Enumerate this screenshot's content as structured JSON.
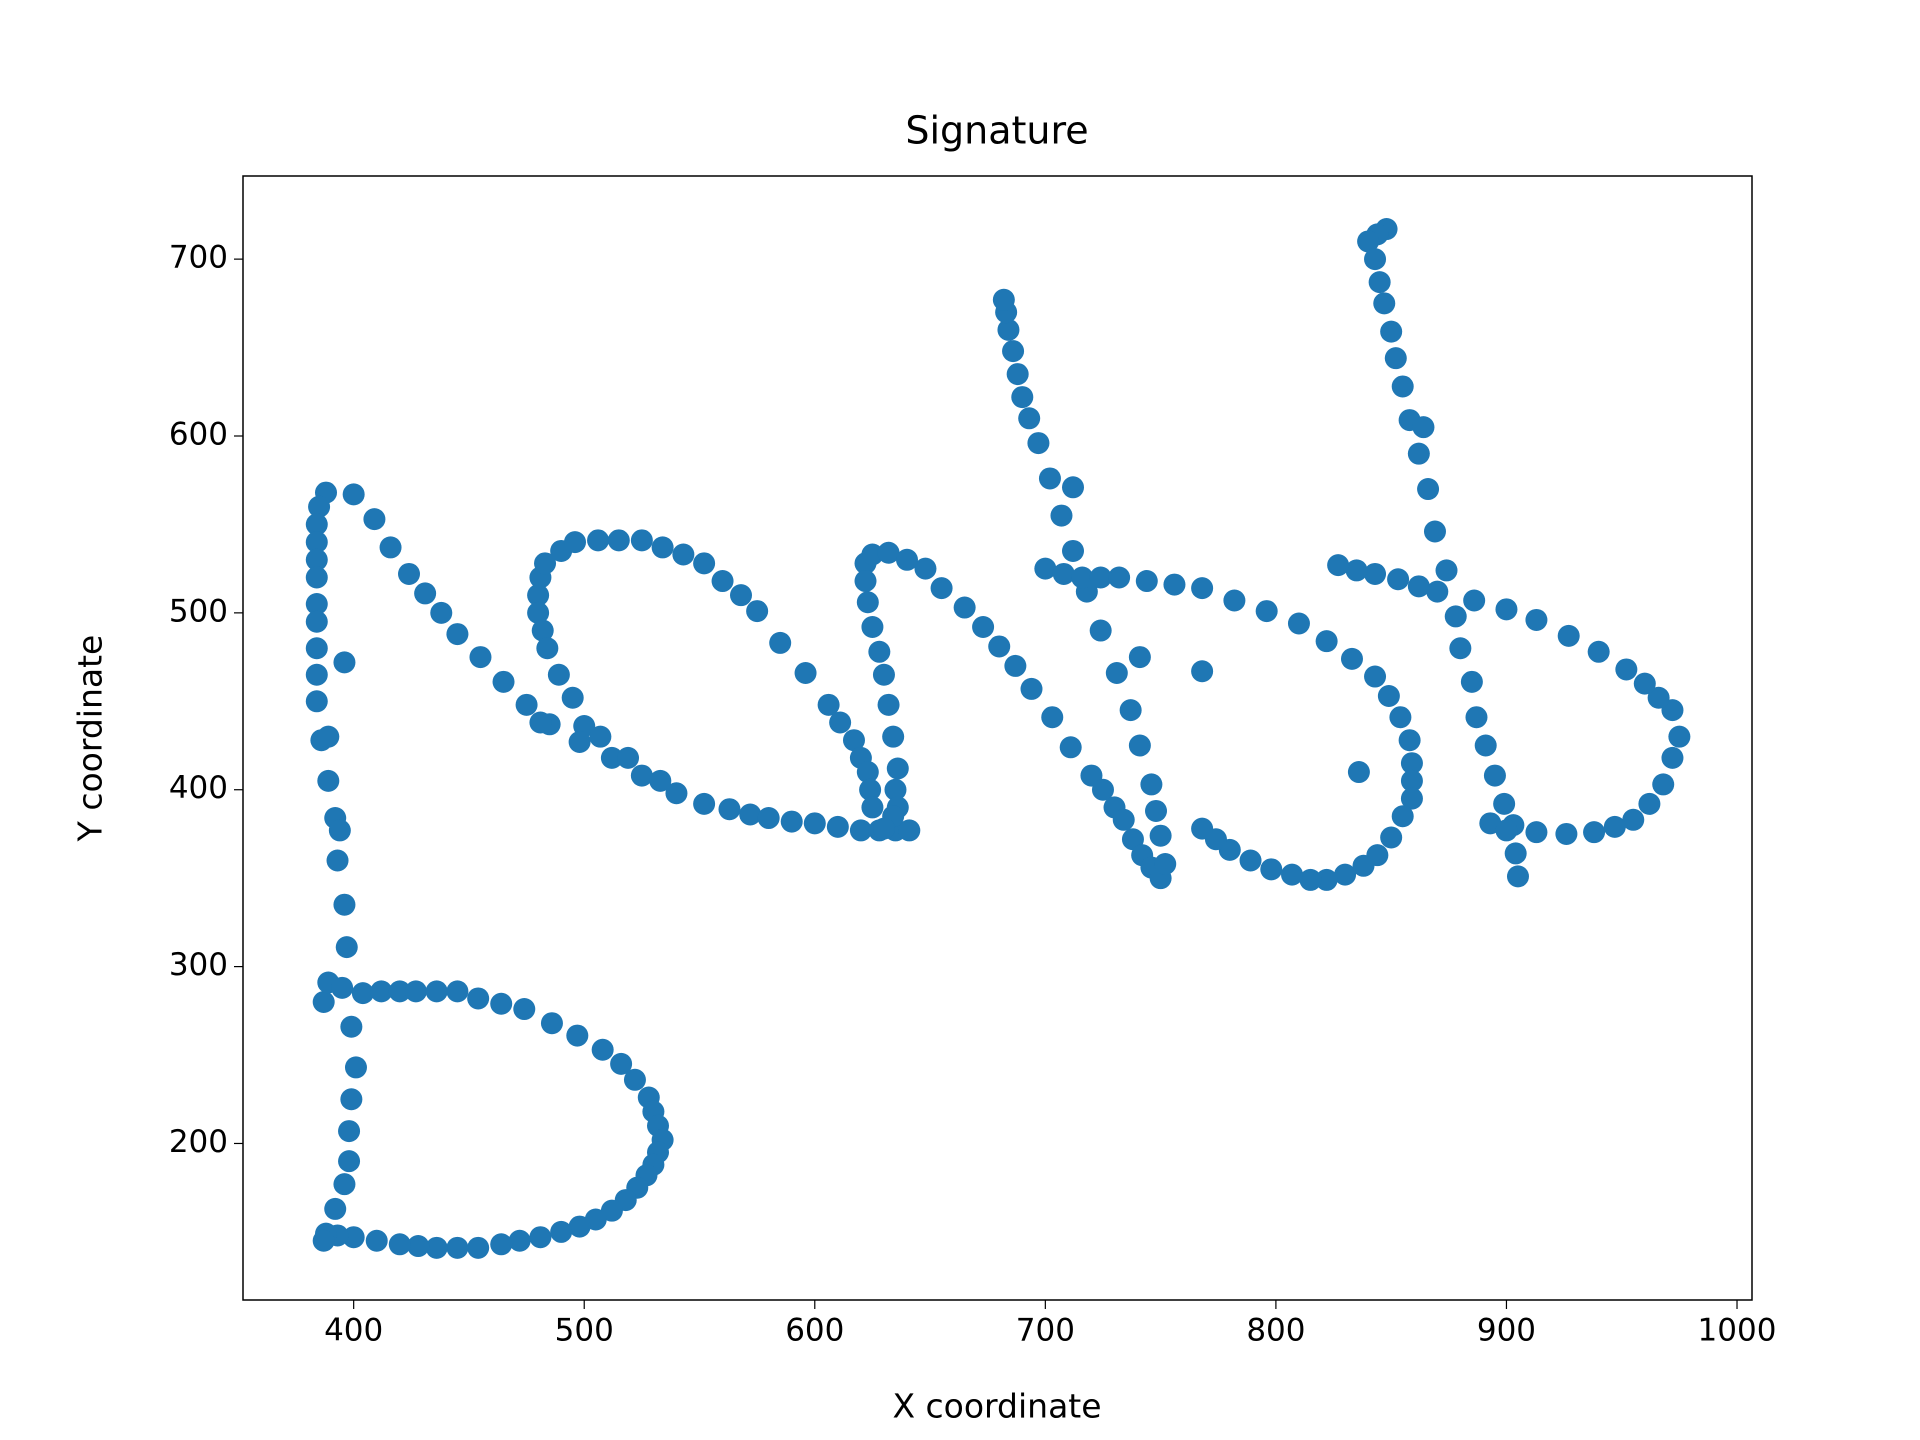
{
  "chart_data": {
    "type": "scatter",
    "title": "Signature",
    "x_label": "X coordinate",
    "y_label": "Y coordinate",
    "color": "#1f77b4",
    "x": [
      388,
      385,
      384,
      384,
      384,
      384,
      384,
      384,
      384,
      384,
      384,
      386,
      389,
      389,
      392,
      394,
      393,
      396,
      397,
      396,
      400,
      409,
      416,
      424,
      431,
      438,
      445,
      455,
      465,
      475,
      485,
      387,
      389,
      395,
      404,
      412,
      420,
      427,
      436,
      445,
      454,
      464,
      474,
      486,
      497,
      508,
      516,
      522,
      528,
      530,
      532,
      534,
      532,
      530,
      527,
      523,
      518,
      512,
      505,
      498,
      490,
      481,
      472,
      464,
      454,
      445,
      436,
      428,
      420,
      410,
      400,
      393,
      388,
      387,
      399,
      401,
      399,
      398,
      398,
      396,
      392,
      480,
      481,
      483,
      490,
      496,
      506,
      515,
      525,
      534,
      543,
      552,
      560,
      568,
      575,
      585,
      596,
      606,
      611,
      617,
      620,
      623,
      624,
      625,
      480,
      482,
      484,
      489,
      495,
      500,
      498,
      507,
      512,
      519,
      525,
      533,
      540,
      552,
      563,
      572,
      580,
      590,
      600,
      610,
      620,
      628,
      635,
      641,
      481,
      622,
      622,
      623,
      625,
      628,
      630,
      632,
      634,
      636,
      635,
      636,
      634,
      630,
      625,
      632,
      640,
      648,
      655,
      665,
      673,
      680,
      687,
      694,
      703,
      711,
      720,
      725,
      730,
      734,
      738,
      742,
      746,
      750,
      752,
      750,
      748,
      746,
      741,
      737,
      731,
      724,
      718,
      712,
      707,
      712,
      702,
      697,
      693,
      690,
      688,
      686,
      684,
      683,
      682,
      700,
      708,
      716,
      724,
      732,
      744,
      756,
      768,
      782,
      796,
      810,
      822,
      833,
      843,
      849,
      854,
      858,
      859,
      859,
      859,
      855,
      850,
      844,
      838,
      830,
      822,
      815,
      807,
      798,
      789,
      780,
      774,
      768,
      768,
      741,
      836,
      848,
      844,
      840,
      843,
      845,
      847,
      850,
      852,
      855,
      858,
      864,
      862,
      866,
      869,
      874,
      870,
      878,
      880,
      885,
      887,
      891,
      895,
      899,
      903,
      904,
      905,
      893,
      900,
      913,
      926,
      938,
      947,
      955,
      962,
      968,
      972,
      975,
      972,
      966,
      960,
      952,
      940,
      927,
      913,
      900,
      886,
      862,
      853,
      843,
      835,
      827
    ],
    "y": [
      568,
      560,
      550,
      540,
      530,
      520,
      505,
      495,
      480,
      465,
      450,
      428,
      430,
      405,
      384,
      377,
      360,
      335,
      311,
      472,
      567,
      553,
      537,
      522,
      511,
      500,
      488,
      475,
      461,
      448,
      437,
      280,
      291,
      288,
      285,
      286,
      286,
      286,
      286,
      286,
      282,
      279,
      276,
      268,
      261,
      253,
      245,
      236,
      226,
      218,
      210,
      202,
      195,
      188,
      182,
      175,
      168,
      162,
      157,
      153,
      150,
      147,
      145,
      143,
      141,
      141,
      141,
      142,
      143,
      145,
      147,
      148,
      149,
      145,
      266,
      243,
      225,
      207,
      190,
      177,
      163,
      510,
      520,
      528,
      535,
      540,
      541,
      541,
      541,
      537,
      533,
      528,
      518,
      510,
      501,
      483,
      466,
      448,
      438,
      428,
      418,
      410,
      400,
      390,
      500,
      490,
      480,
      465,
      452,
      436,
      427,
      430,
      418,
      418,
      408,
      405,
      398,
      392,
      389,
      386,
      384,
      382,
      381,
      379,
      377,
      377,
      377,
      377,
      438,
      528,
      518,
      506,
      492,
      478,
      465,
      448,
      430,
      412,
      400,
      390,
      385,
      378,
      533,
      534,
      530,
      525,
      514,
      503,
      492,
      481,
      470,
      457,
      441,
      424,
      408,
      400,
      390,
      383,
      372,
      363,
      356,
      350,
      358,
      374,
      388,
      403,
      425,
      445,
      466,
      490,
      512,
      535,
      555,
      571,
      576,
      596,
      610,
      622,
      635,
      648,
      660,
      670,
      677,
      525,
      522,
      520,
      520,
      520,
      518,
      516,
      514,
      507,
      501,
      494,
      484,
      474,
      464,
      453,
      441,
      428,
      415,
      405,
      395,
      385,
      373,
      363,
      357,
      352,
      349,
      349,
      352,
      355,
      360,
      366,
      372,
      378,
      467,
      475,
      410,
      717,
      714,
      710,
      700,
      687,
      675,
      659,
      644,
      628,
      609,
      605,
      590,
      570,
      546,
      524,
      512,
      498,
      480,
      461,
      441,
      425,
      408,
      392,
      380,
      364,
      351,
      381,
      377,
      376,
      375,
      376,
      379,
      383,
      392,
      403,
      418,
      430,
      445,
      452,
      460,
      468,
      478,
      487,
      496,
      502,
      507,
      515,
      519,
      522,
      524,
      527
    ],
    "xlim": [
      352,
      1006.5
    ],
    "ylim": [
      111.5,
      747
    ],
    "xticks": [
      400,
      500,
      600,
      700,
      800,
      900,
      1000
    ],
    "yticks": [
      200,
      300,
      400,
      500,
      600,
      700
    ]
  }
}
